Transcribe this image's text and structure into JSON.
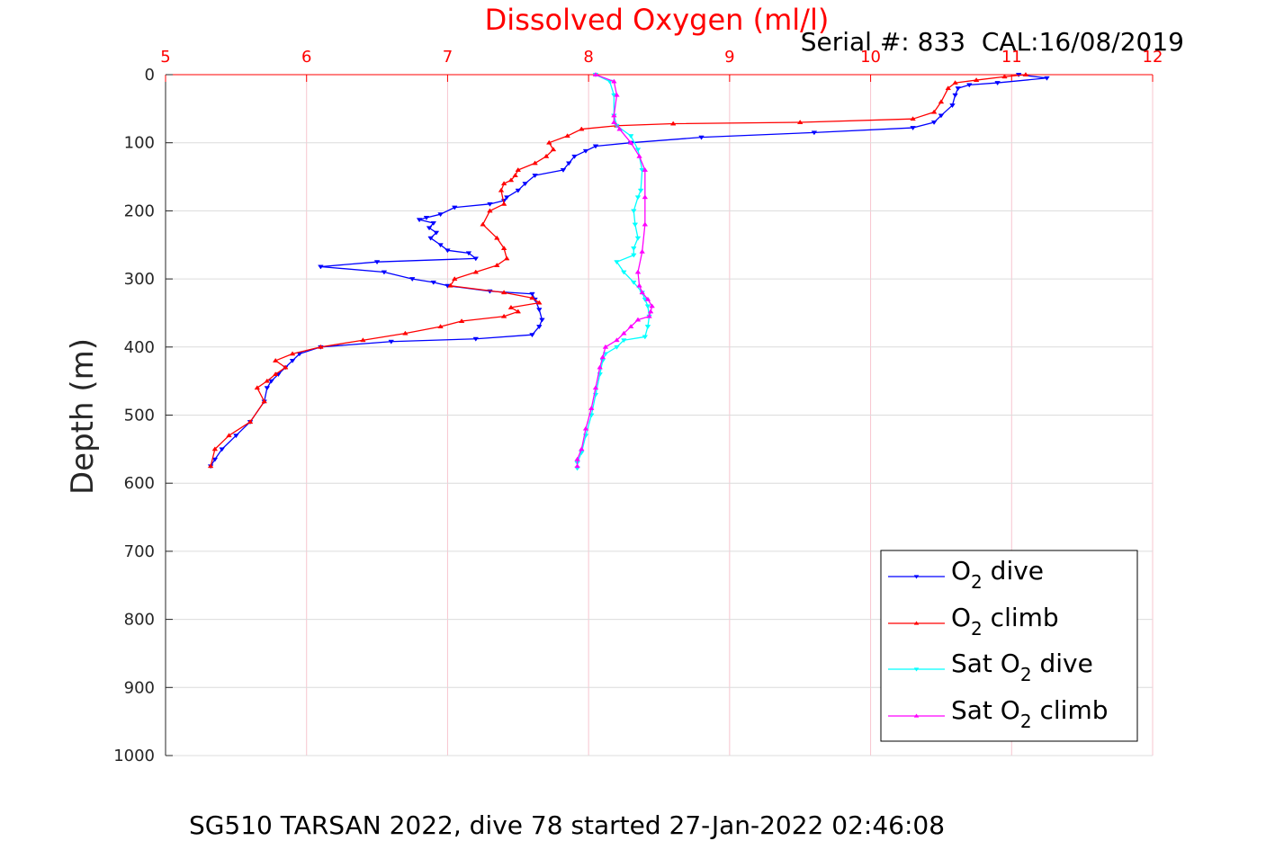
{
  "chart_data": {
    "type": "line",
    "title": "Dissolved Oxygen (ml/l)",
    "annotation": "Serial #: 833  CAL:16/08/2019",
    "ylabel": "Depth (m)",
    "footer": "SG510 TARSAN 2022, dive 78 started 27-Jan-2022 02:46:08",
    "xlim": [
      5,
      12
    ],
    "ylim": [
      0,
      1000
    ],
    "y_reversed": true,
    "x_axis_location": "top",
    "x_ticks": [
      5,
      6,
      7,
      8,
      9,
      10,
      11,
      12
    ],
    "x_tick_labels": [
      "5",
      "6",
      "7",
      "8",
      "9",
      "10",
      "11",
      "12"
    ],
    "y_ticks": [
      0,
      100,
      200,
      300,
      400,
      500,
      600,
      700,
      800,
      900,
      1000
    ],
    "y_tick_labels": [
      "0",
      "100",
      "200",
      "300",
      "400",
      "500",
      "600",
      "700",
      "800",
      "900",
      "1000"
    ],
    "grid": true,
    "legend_position": "bottom-right",
    "colors": {
      "title": "#ff0000",
      "x_ticks": "#ff0000",
      "grid_x": "#f7c5cf",
      "grid_y": "#dcdcdc"
    },
    "series": [
      {
        "label_parts": {
          "pre": "O",
          "sub": "2",
          "post": " dive"
        },
        "color": "#0000ff",
        "marker": "triangle-down",
        "x": [
          11.05,
          11.25,
          10.9,
          10.7,
          10.62,
          10.6,
          10.58,
          10.5,
          10.45,
          10.3,
          9.6,
          8.8,
          8.3,
          8.05,
          7.98,
          7.9,
          7.86,
          7.82,
          7.62,
          7.55,
          7.5,
          7.42,
          7.4,
          7.3,
          7.05,
          6.95,
          6.85,
          6.8,
          6.9,
          6.87,
          6.92,
          6.88,
          6.95,
          7.0,
          7.15,
          7.2,
          6.5,
          6.1,
          6.55,
          6.75,
          6.9,
          7.0,
          7.3,
          7.6,
          7.62,
          7.65,
          7.67,
          7.65,
          7.6,
          7.2,
          6.6,
          6.1,
          5.95,
          5.9,
          5.85,
          5.8,
          5.75,
          5.72,
          5.7,
          5.6,
          5.5,
          5.4,
          5.35,
          5.32
        ],
        "y": [
          0,
          5,
          12,
          15,
          20,
          30,
          45,
          60,
          70,
          78,
          85,
          92,
          100,
          105,
          112,
          120,
          130,
          140,
          148,
          160,
          170,
          180,
          185,
          190,
          195,
          205,
          210,
          213,
          218,
          225,
          232,
          240,
          250,
          258,
          262,
          270,
          275,
          282,
          290,
          300,
          305,
          310,
          318,
          322,
          330,
          345,
          360,
          370,
          382,
          388,
          392,
          400,
          410,
          420,
          430,
          440,
          450,
          460,
          480,
          510,
          530,
          550,
          565,
          575
        ]
      },
      {
        "label_parts": {
          "pre": "O",
          "sub": "2",
          "post": " climb"
        },
        "color": "#ff0000",
        "marker": "triangle-up",
        "x": [
          11.1,
          10.95,
          10.75,
          10.6,
          10.55,
          10.5,
          10.45,
          10.3,
          9.5,
          8.6,
          8.2,
          7.95,
          7.85,
          7.72,
          7.75,
          7.7,
          7.62,
          7.5,
          7.48,
          7.45,
          7.4,
          7.38,
          7.4,
          7.3,
          7.25,
          7.35,
          7.4,
          7.42,
          7.35,
          7.2,
          7.05,
          7.02,
          7.4,
          7.6,
          7.65,
          7.45,
          7.5,
          7.4,
          7.1,
          6.95,
          6.7,
          6.4,
          6.1,
          5.9,
          5.78,
          5.85,
          5.78,
          5.72,
          5.65,
          5.7,
          5.6,
          5.45,
          5.35,
          5.32
        ],
        "y": [
          0,
          3,
          8,
          12,
          20,
          40,
          55,
          65,
          70,
          72,
          75,
          80,
          90,
          100,
          110,
          120,
          130,
          140,
          148,
          155,
          160,
          170,
          190,
          200,
          220,
          240,
          255,
          270,
          280,
          290,
          300,
          310,
          320,
          328,
          335,
          342,
          348,
          355,
          362,
          370,
          380,
          390,
          400,
          410,
          420,
          430,
          440,
          450,
          460,
          480,
          510,
          530,
          550,
          575
        ]
      },
      {
        "label_parts": {
          "pre": "Sat O",
          "sub": "2",
          "post": " dive"
        },
        "color": "#00ffff",
        "marker": "triangle-down",
        "x": [
          8.05,
          8.15,
          8.18,
          8.18,
          8.2,
          8.3,
          8.35,
          8.38,
          8.37,
          8.35,
          8.32,
          8.33,
          8.35,
          8.32,
          8.32,
          8.2,
          8.25,
          8.32,
          8.38,
          8.4,
          8.42,
          8.43,
          8.42,
          8.4,
          8.25,
          8.2,
          8.12,
          8.1,
          8.08,
          8.05,
          8.02,
          7.98,
          7.95,
          7.92,
          7.92
        ],
        "y": [
          0,
          10,
          30,
          60,
          75,
          90,
          110,
          140,
          170,
          180,
          200,
          220,
          240,
          255,
          265,
          275,
          290,
          305,
          320,
          330,
          340,
          355,
          370,
          385,
          390,
          400,
          410,
          420,
          440,
          470,
          500,
          530,
          555,
          570,
          578
        ]
      },
      {
        "label_parts": {
          "pre": "Sat O",
          "sub": "2",
          "post": " climb"
        },
        "color": "#ff00ff",
        "marker": "triangle-up",
        "x": [
          8.05,
          8.18,
          8.2,
          8.18,
          8.18,
          8.22,
          8.3,
          8.36,
          8.4,
          8.4,
          8.4,
          8.38,
          8.35,
          8.36,
          8.38,
          8.42,
          8.45,
          8.44,
          8.43,
          8.35,
          8.3,
          8.25,
          8.2,
          8.12,
          8.1,
          8.08,
          8.05,
          8.02,
          7.98,
          7.95,
          7.92,
          7.92
        ],
        "y": [
          0,
          10,
          30,
          60,
          70,
          80,
          100,
          120,
          140,
          180,
          220,
          260,
          290,
          310,
          320,
          330,
          340,
          348,
          355,
          360,
          370,
          380,
          390,
          400,
          415,
          430,
          460,
          490,
          520,
          550,
          565,
          575
        ]
      }
    ]
  }
}
